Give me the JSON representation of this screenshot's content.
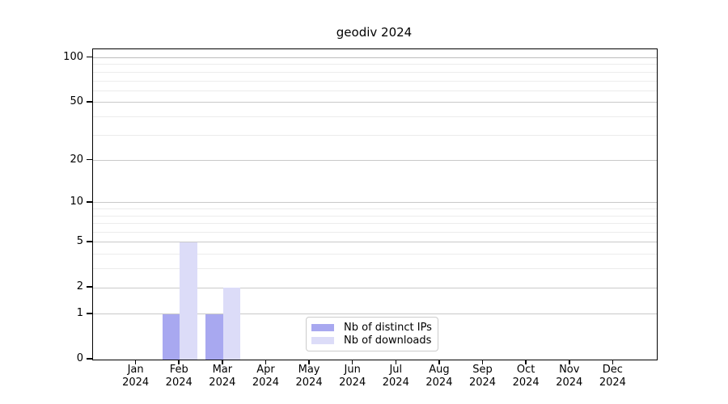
{
  "chart_data": {
    "type": "bar",
    "title": "geodiv 2024",
    "categories": [
      "Jan",
      "Feb",
      "Mar",
      "Apr",
      "May",
      "Jun",
      "Jul",
      "Aug",
      "Sep",
      "Oct",
      "Nov",
      "Dec"
    ],
    "x_tick_second_line": "2024",
    "series": [
      {
        "name": "Nb of distinct IPs",
        "color": "#a8a8f0",
        "values": [
          0,
          1,
          1,
          0,
          0,
          0,
          0,
          0,
          0,
          0,
          0,
          0
        ]
      },
      {
        "name": "Nb of downloads",
        "color": "#dcdcf8",
        "values": [
          0,
          5,
          2,
          0,
          0,
          0,
          0,
          0,
          0,
          0,
          0,
          0
        ]
      }
    ],
    "y_axis": {
      "scale": "log1p",
      "ticks": [
        0,
        1,
        2,
        5,
        10,
        20,
        50,
        100
      ],
      "minor_ticks": [
        3,
        4,
        6,
        7,
        8,
        9,
        30,
        40,
        60,
        70,
        80,
        90
      ],
      "max": 114
    },
    "grid": true,
    "legend_position": "lower-center"
  },
  "colors": {
    "major_grid": "#c9c9c9",
    "minor_grid": "#ececec",
    "top_grid": "#bdbdbd",
    "axis": "#000000",
    "legend_border": "#cccccc"
  }
}
